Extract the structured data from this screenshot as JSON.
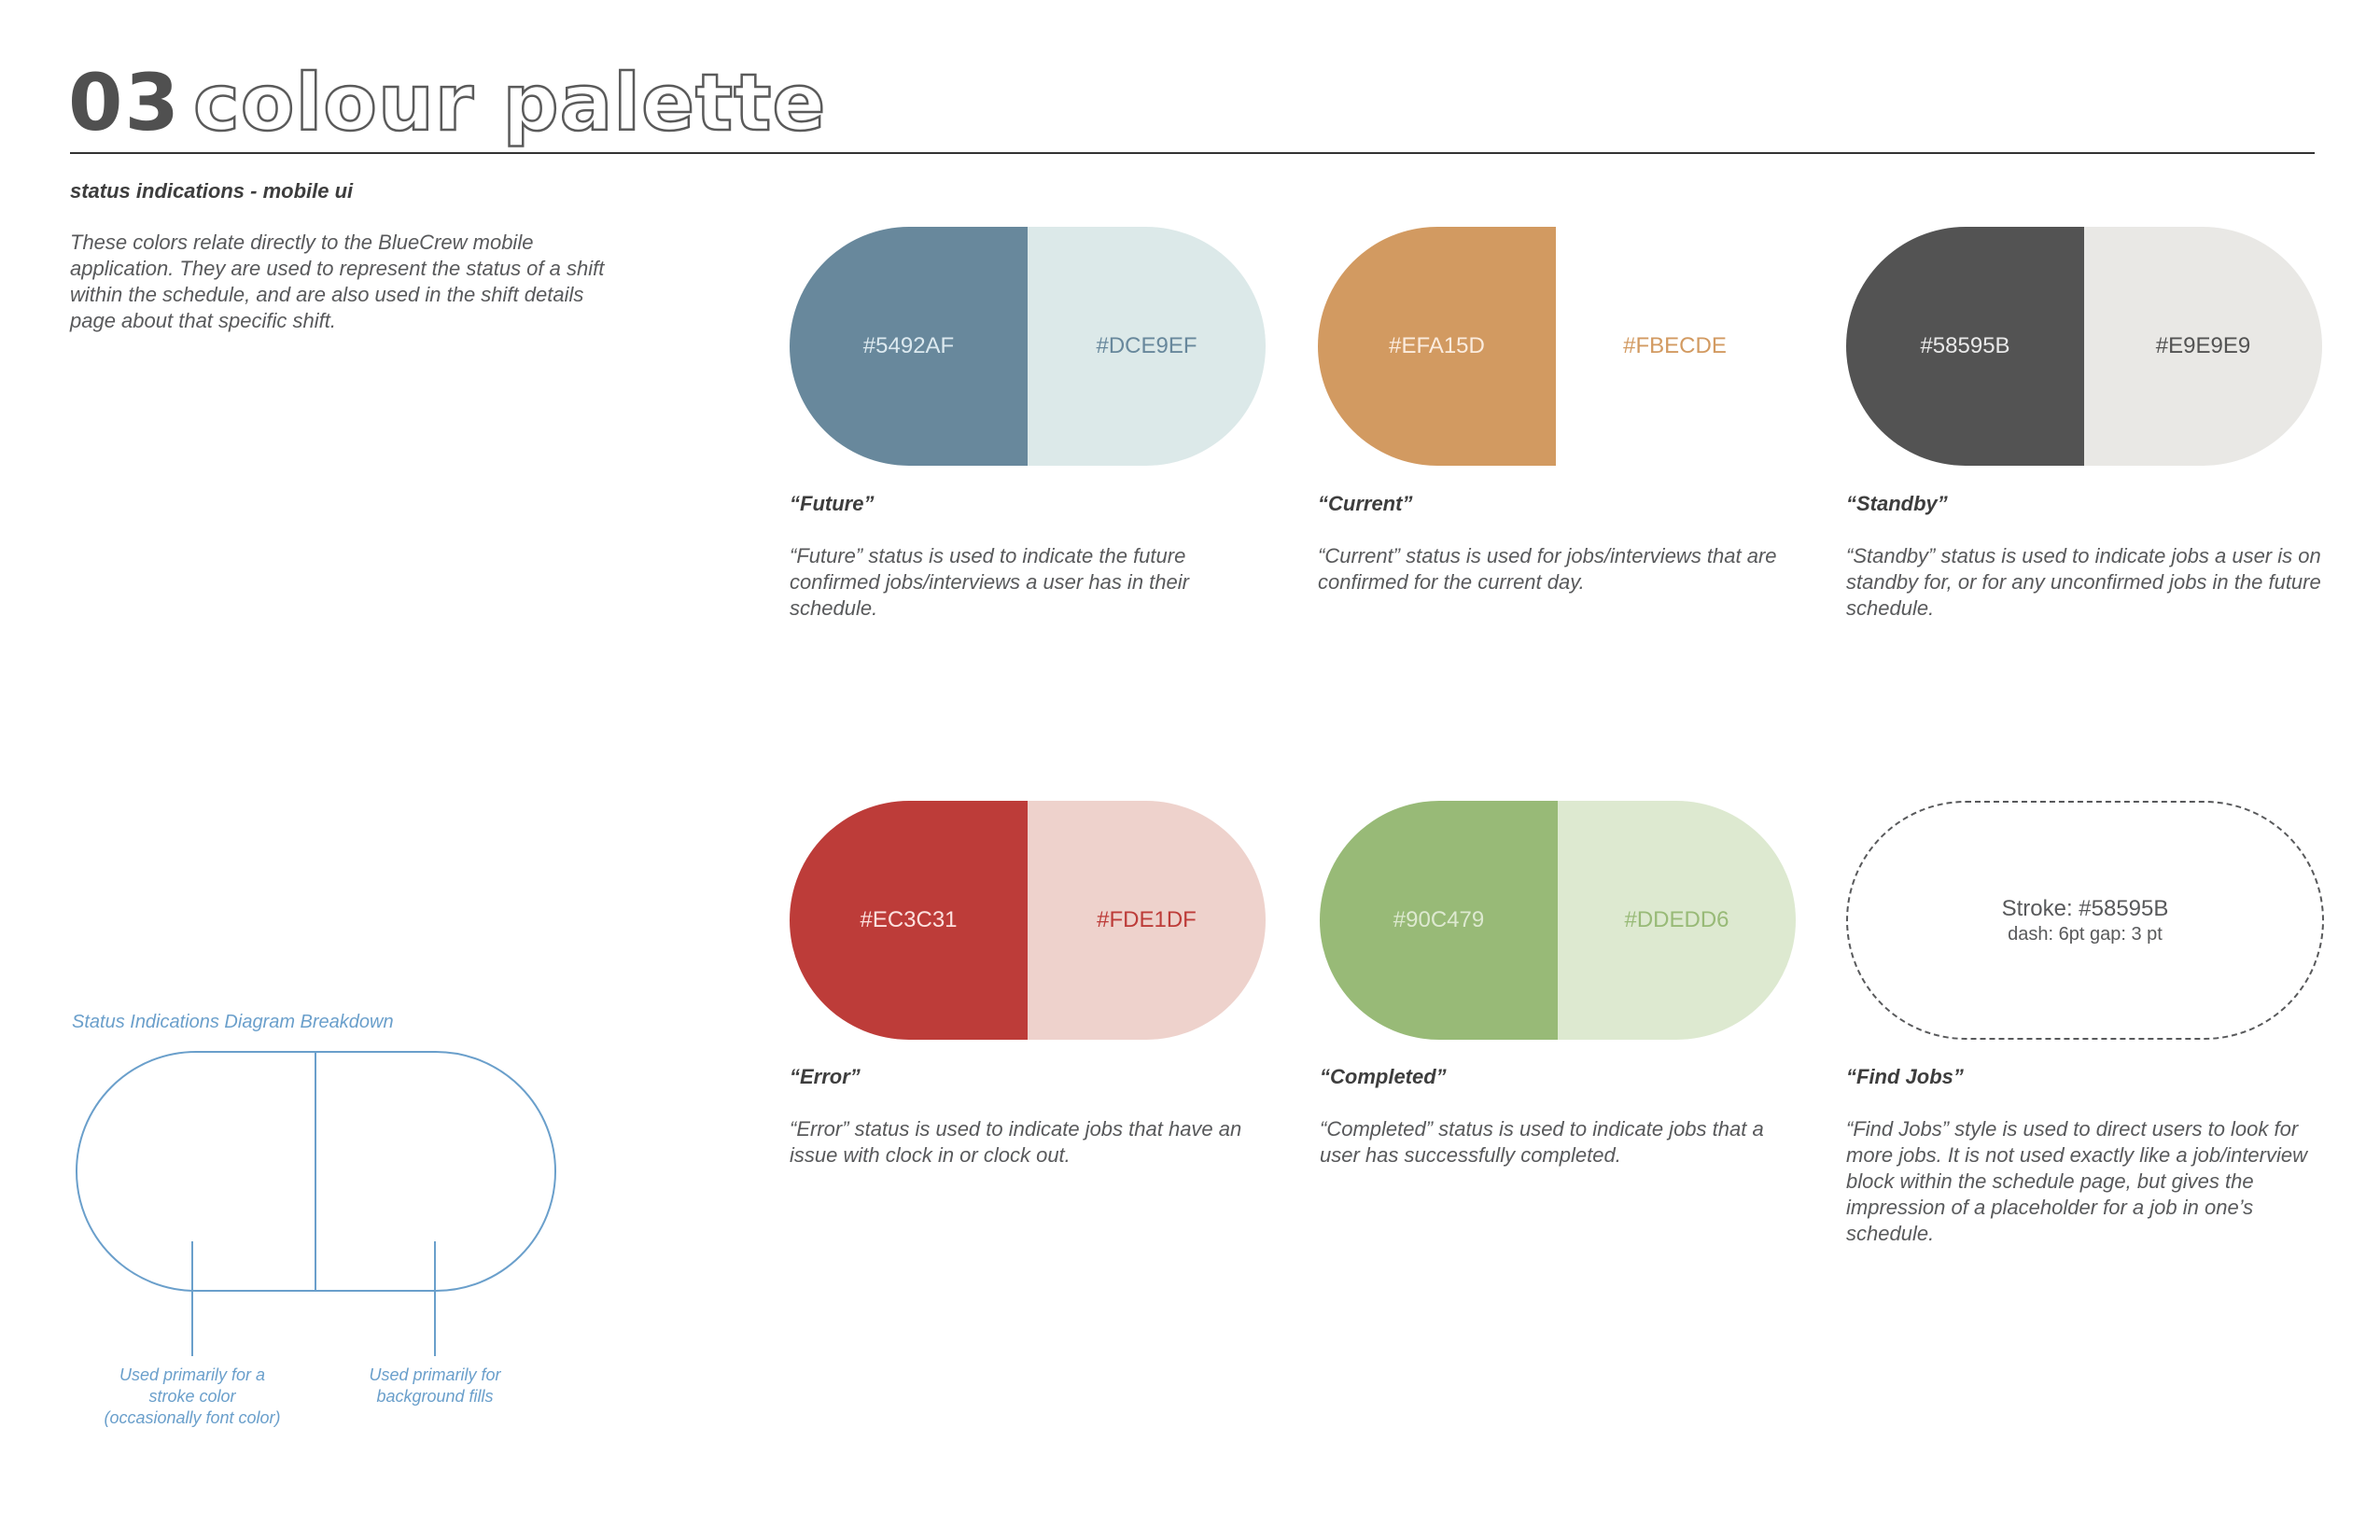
{
  "header": {
    "number": "03",
    "title": "colour palette"
  },
  "intro": {
    "heading": "status indications -  mobile ui",
    "text": "These colors relate directly to the BlueCrew mobile application. They are used to represent the status of a shift within the schedule, and are also used in the shift details page about that specific shift."
  },
  "statuses": [
    {
      "name": "“Future”",
      "primary": {
        "hex": "#5492AF",
        "fill": "#68889c",
        "text_color": "#dce9ef"
      },
      "secondary": {
        "hex": "#DCE9EF",
        "fill": "#dce9e9",
        "text_color": "#68889c"
      },
      "description": "“Future” status is used to indicate the future confirmed jobs/interviews a user has in their schedule."
    },
    {
      "name": "“Current”",
      "primary": {
        "hex": "#EFA15D",
        "fill": "#d29a61",
        "text_color": "#fbecde"
      },
      "secondary": {
        "hex": "#FBECDE",
        "fill": "#ffffff",
        "text_color": "#d29a61"
      },
      "description": "“Current” status is used for jobs/interviews that are confirmed for the current day."
    },
    {
      "name": "“Standby”",
      "primary": {
        "hex": "#58595B",
        "fill": "#535353",
        "text_color": "#e9e9e9"
      },
      "secondary": {
        "hex": "#E9E9E9",
        "fill": "#e9e8e5",
        "text_color": "#535353"
      },
      "description": "“Standby” status is used to indicate jobs a user is on standby for, or for any unconfirmed jobs in the future schedule."
    },
    {
      "name": "“Error”",
      "primary": {
        "hex": "#EC3C31",
        "fill": "#bd3c39",
        "text_color": "#fde1df"
      },
      "secondary": {
        "hex": "#FDE1DF",
        "fill": "#eed2cc",
        "text_color": "#bd3c39"
      },
      "description": "“Error” status is used to indicate jobs that have an issue with clock in or clock out."
    },
    {
      "name": "“Completed”",
      "primary": {
        "hex": "#90C479",
        "fill": "#98ba77",
        "text_color": "#dde9d0"
      },
      "secondary": {
        "hex": "#DDEDD6",
        "fill": "#dde9d0",
        "text_color": "#98ba77"
      },
      "description": "“Completed” status is used to indicate jobs that a user has successfully completed."
    },
    {
      "name": "“Find Jobs”",
      "stroke_label": "Stroke: #58595B",
      "dash_label": "dash: 6pt  gap: 3 pt",
      "description": "“Find Jobs” style is used to direct users to look for more jobs. It is not used exactly like a job/interview block within the schedule page, but gives the impression of a placeholder for a job in one’s schedule."
    }
  ],
  "diagram": {
    "title": "Status Indications Diagram Breakdown",
    "note_left": "Used primarily for a stroke color (occasionally font color)",
    "note_right": "Used primarily for background fills",
    "color": "#6a9fcb"
  }
}
